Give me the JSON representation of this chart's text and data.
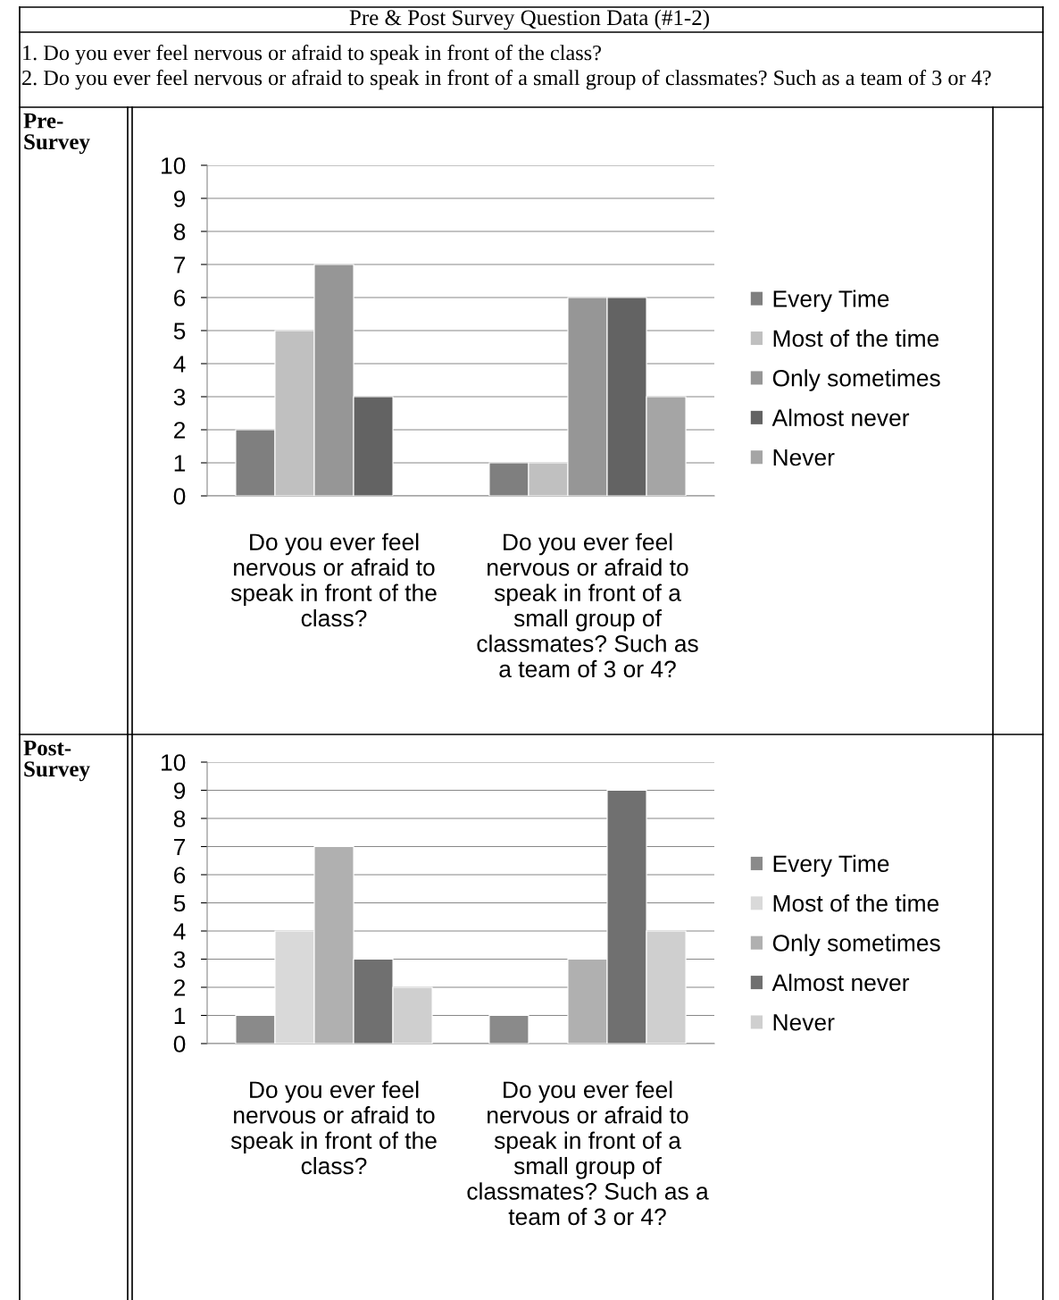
{
  "chart_data": [
    {
      "type": "bar",
      "title": "Pre & Post Survey Question Data (#1-2)",
      "annotations": [
        "1. Do you ever feel nervous or afraid to speak in front of the class?",
        "2. Do you ever feel nervous or afraid to speak in front of a small group of classmates? Such as a team of 3 or 4?",
        "Pre-\nSurvey"
      ],
      "categories": [
        "Do you ever feel\nnervous or afraid to\nspeak in front of the\nclass?",
        "Do you ever feel\nnervous or afraid to\nspeak in front of a\nsmall group of\nclassmates? Such as\na team of 3 or 4?"
      ],
      "series": [
        {
          "name": "Every Time",
          "color": "#7f7f7f",
          "values": [
            2,
            1
          ]
        },
        {
          "name": "Most of the time",
          "color": "#c0c0c0",
          "values": [
            5,
            1
          ]
        },
        {
          "name": "Only sometimes",
          "color": "#969696",
          "values": [
            7,
            6
          ]
        },
        {
          "name": "Almost never",
          "color": "#636363",
          "values": [
            3,
            6
          ]
        },
        {
          "name": "Never",
          "color": "#a5a5a5",
          "values": [
            0,
            3
          ]
        }
      ],
      "ylim": [
        0,
        10
      ],
      "yticks": [
        0,
        1,
        2,
        3,
        4,
        5,
        6,
        7,
        8,
        9,
        10
      ],
      "grid": "y",
      "legend": "right"
    },
    {
      "type": "bar",
      "annotations": [
        "Post-\nSurvey"
      ],
      "categories": [
        "Do you ever feel\nnervous or afraid to\nspeak in front of the\nclass?",
        "Do you ever feel\nnervous or afraid to\nspeak in front of a\nsmall group of\nclassmates? Such as a\nteam of 3 or 4?"
      ],
      "series": [
        {
          "name": "Every Time",
          "color": "#8a8a8a",
          "values": [
            1,
            1
          ]
        },
        {
          "name": "Most of the time",
          "color": "#d9d9d9",
          "values": [
            4,
            0
          ]
        },
        {
          "name": "Only sometimes",
          "color": "#b0b0b0",
          "values": [
            7,
            3
          ]
        },
        {
          "name": "Almost never",
          "color": "#707070",
          "values": [
            3,
            9
          ]
        },
        {
          "name": "Never",
          "color": "#cfcfcf",
          "values": [
            2,
            4
          ]
        }
      ],
      "ylim": [
        0,
        10
      ],
      "yticks": [
        0,
        1,
        2,
        3,
        4,
        5,
        6,
        7,
        8,
        9,
        10
      ],
      "grid": "y",
      "legend": "right"
    }
  ]
}
